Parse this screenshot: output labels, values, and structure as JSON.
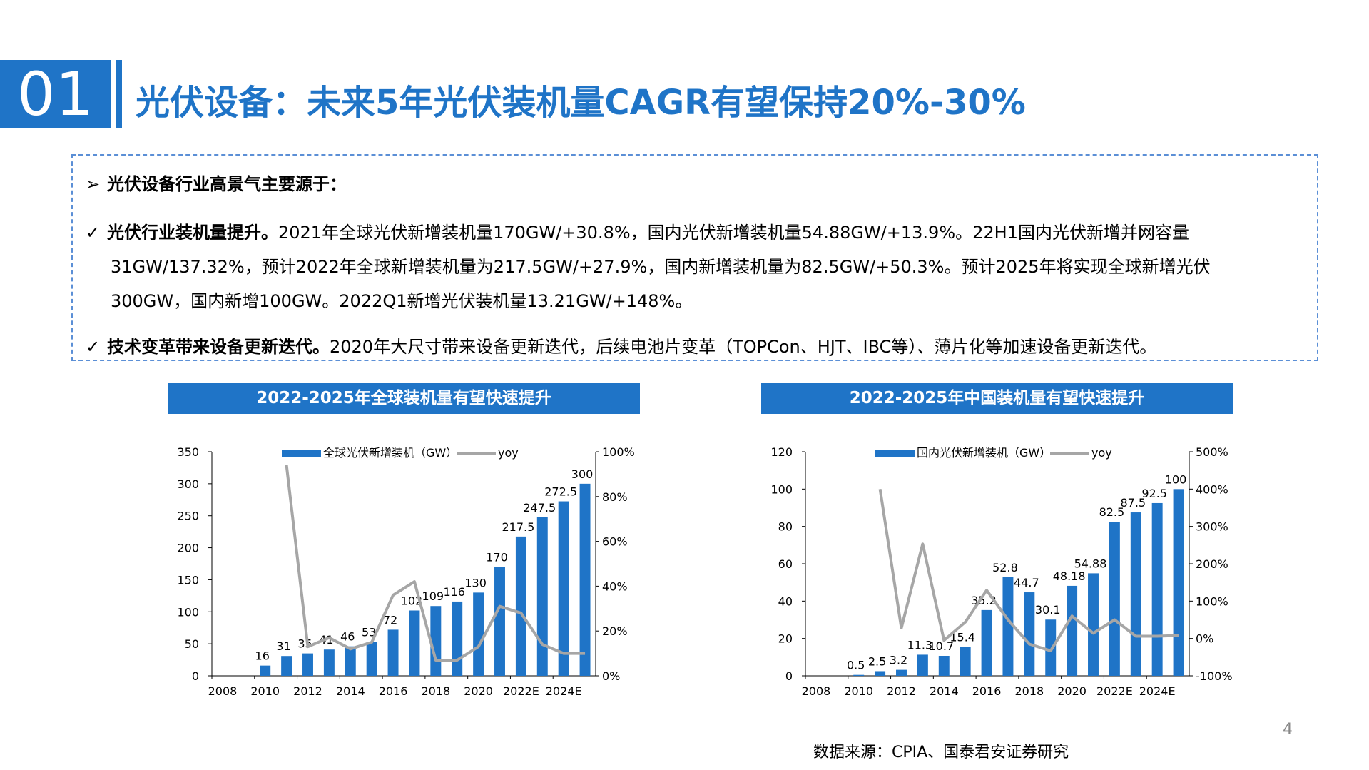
{
  "section": {
    "number": "01",
    "title": "光伏设备：未来5年光伏装机量CAGR有望保持20%-30%"
  },
  "info": {
    "heading": "光伏设备行业高景气主要源于：",
    "heading_marker": "➢",
    "check_marker": "✓",
    "point1": {
      "bold": "光伏行业装机量提升。",
      "line1": "2021年全球光伏新增装机量170GW/+30.8%，国内光伏新增装机量54.88GW/+13.9%。22H1国内光伏新增并网容量",
      "line2": "31GW/137.32%，预计2022年全球新增装机量为217.5GW/+27.9%，国内新增装机量为82.5GW/+50.3%。预计2025年将实现全球新增光伏",
      "line3": "300GW，国内新增100GW。2022Q1新增光伏装机量13.21GW/+148%。"
    },
    "point2": {
      "bold": "技术变革带来设备更新迭代。",
      "text": "2020年大尺寸带来设备更新迭代，后续电池片变革（TOPCon、HJT、IBC等）、薄片化等加速设备更新迭代。"
    }
  },
  "charts": {
    "left_header": "2022-2025年全球装机量有望快速提升",
    "right_header": "2022-2025年中国装机量有望快速提升"
  },
  "chart_data": [
    {
      "type": "bar",
      "title": "2022-2025年全球装机量有望快速提升",
      "categories": [
        "2008",
        "2009",
        "2010",
        "2011",
        "2012",
        "2013",
        "2014",
        "2015",
        "2016",
        "2017",
        "2018",
        "2019",
        "2020",
        "2021",
        "2022E",
        "2023E",
        "2024E",
        "2025E"
      ],
      "x_tick_labels": [
        "2008",
        "2010",
        "2012",
        "2014",
        "2016",
        "2018",
        "2020",
        "2022E",
        "2024E"
      ],
      "series": [
        {
          "name": "全球光伏新增装机（GW）",
          "kind": "bar",
          "axis": "left",
          "values": [
            null,
            null,
            16,
            31,
            35,
            41,
            46,
            53,
            72,
            102,
            109,
            116,
            130,
            170,
            217.5,
            247.5,
            272.5,
            300
          ],
          "labels": [
            "",
            "",
            "16",
            "31",
            "35",
            "41",
            "46",
            "53",
            "72",
            "102",
            "109",
            "116",
            "130",
            "170",
            "217.5",
            "247.5",
            "272.5",
            "300"
          ]
        },
        {
          "name": "yoy",
          "kind": "line",
          "axis": "right",
          "values": [
            null,
            null,
            null,
            0.94,
            0.13,
            0.17,
            0.12,
            0.15,
            0.36,
            0.42,
            0.07,
            0.07,
            0.13,
            0.31,
            0.28,
            0.14,
            0.1,
            0.1
          ]
        }
      ],
      "ylim": [
        0,
        350
      ],
      "y_ticks": [
        "0",
        "50",
        "100",
        "150",
        "200",
        "250",
        "300",
        "350"
      ],
      "y2lim": [
        0,
        1
      ],
      "y2_ticks": [
        "0%",
        "20%",
        "40%",
        "60%",
        "80%",
        "100%"
      ],
      "colors": {
        "bar": "#1f74c7",
        "line": "#a6a6a6"
      },
      "legend": "top"
    },
    {
      "type": "bar",
      "title": "2022-2025年中国装机量有望快速提升",
      "categories": [
        "2008",
        "2009",
        "2010",
        "2011",
        "2012",
        "2013",
        "2014",
        "2015",
        "2016",
        "2017",
        "2018",
        "2019",
        "2020",
        "2021",
        "2022E",
        "2023E",
        "2024E",
        "2025E"
      ],
      "x_tick_labels": [
        "2008",
        "2010",
        "2012",
        "2014",
        "2016",
        "2018",
        "2020",
        "2022E",
        "2024E"
      ],
      "series": [
        {
          "name": "国内光伏新增装机（GW）",
          "kind": "bar",
          "axis": "left",
          "values": [
            null,
            null,
            0.5,
            2.5,
            3.2,
            11.3,
            10.7,
            15.4,
            35.2,
            52.8,
            44.7,
            30.1,
            48.18,
            54.88,
            82.5,
            87.5,
            92.5,
            100
          ],
          "labels": [
            "",
            "",
            "0.5",
            "2.5",
            "3.2",
            "11.3",
            "10.7",
            "15.4",
            "35.2",
            "52.8",
            "44.7",
            "30.1",
            "48.18",
            "54.88",
            "82.5",
            "87.5",
            "92.5",
            "100"
          ]
        },
        {
          "name": "yoy",
          "kind": "line",
          "axis": "right",
          "values": [
            null,
            null,
            null,
            4.0,
            0.28,
            2.53,
            -0.05,
            0.44,
            1.29,
            0.5,
            -0.15,
            -0.33,
            0.6,
            0.14,
            0.5,
            0.06,
            0.06,
            0.08
          ]
        }
      ],
      "ylim": [
        0,
        120
      ],
      "y_ticks": [
        "0",
        "20",
        "40",
        "60",
        "80",
        "100",
        "120"
      ],
      "y2lim": [
        -1,
        5
      ],
      "y2_ticks": [
        "-100%",
        "0%",
        "100%",
        "200%",
        "300%",
        "400%",
        "500%"
      ],
      "colors": {
        "bar": "#1f74c7",
        "line": "#a6a6a6"
      },
      "legend": "top"
    }
  ],
  "footer": {
    "page": "4",
    "source": "数据来源：CPIA、国泰君安证券研究"
  }
}
